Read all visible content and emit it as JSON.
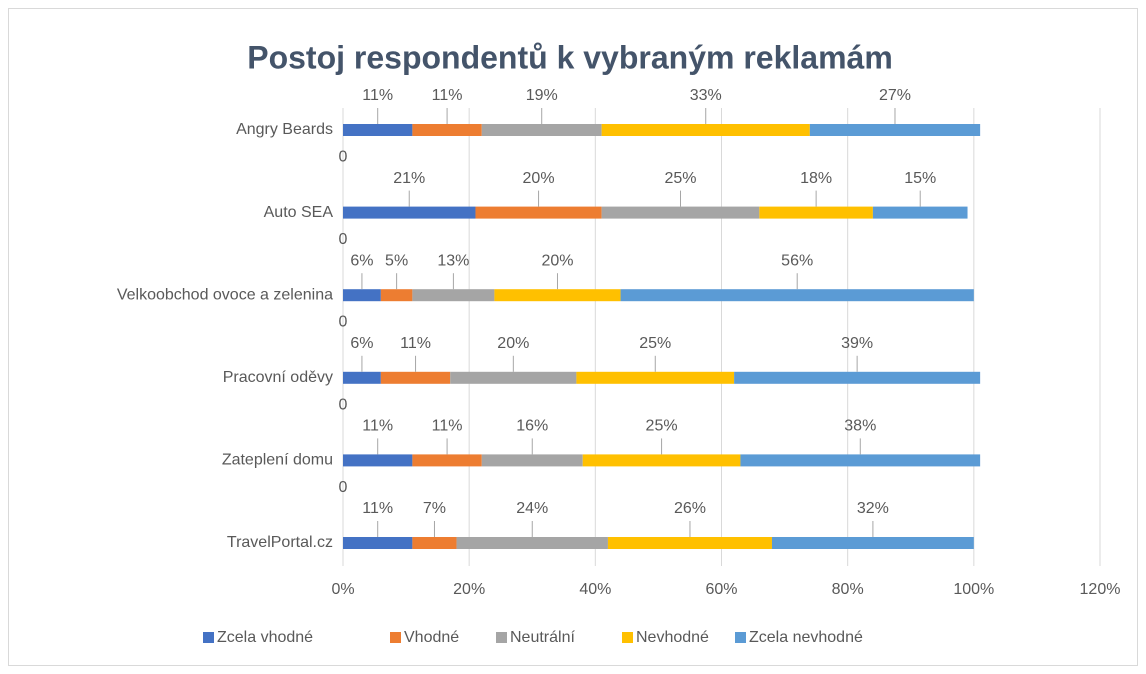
{
  "chart_data": {
    "type": "stacked-bar-horizontal",
    "title": "Postoj respondentů k vybraným reklamám",
    "categories": [
      "Angry Beards",
      null,
      "Auto SEA",
      null,
      "Velkoobchod ovoce a zelenina",
      null,
      "Pracovní oděvy",
      null,
      "Zateplení domu",
      null,
      "TravelPortal.cz"
    ],
    "series": [
      {
        "name": "Zcela vhodné",
        "color": "#4472c4",
        "values": [
          11,
          0,
          21,
          0,
          6,
          0,
          6,
          0,
          11,
          0,
          11
        ],
        "value_labels": [
          "11%",
          "0",
          "21%",
          "0",
          "6%",
          "0",
          "6%",
          "0",
          "11%",
          "0",
          "11%"
        ]
      },
      {
        "name": "Vhodné",
        "color": "#ed7d31",
        "values": [
          11,
          null,
          20,
          null,
          5,
          null,
          11,
          null,
          11,
          null,
          7
        ],
        "value_labels": [
          "11%",
          null,
          "20%",
          null,
          "5%",
          null,
          "11%",
          null,
          "11%",
          null,
          "7%"
        ]
      },
      {
        "name": "Neutrální",
        "color": "#a5a5a5",
        "values": [
          19,
          null,
          25,
          null,
          13,
          null,
          20,
          null,
          16,
          null,
          24
        ],
        "value_labels": [
          "19%",
          null,
          "25%",
          null,
          "13%",
          null,
          "20%",
          null,
          "16%",
          null,
          "24%"
        ]
      },
      {
        "name": "Nevhodné",
        "color": "#ffc000",
        "values": [
          33,
          null,
          18,
          null,
          20,
          null,
          25,
          null,
          25,
          null,
          26
        ],
        "value_labels": [
          "33%",
          null,
          "18%",
          null,
          "20%",
          null,
          "25%",
          null,
          "25%",
          null,
          "26%"
        ]
      },
      {
        "name": "Zcela nevhodné",
        "color": "#5b9bd5",
        "values": [
          27,
          null,
          15,
          null,
          56,
          null,
          39,
          null,
          38,
          null,
          32
        ],
        "value_labels": [
          "27%",
          null,
          "15%",
          null,
          "56%",
          null,
          "39%",
          null,
          "38%",
          null,
          "32%"
        ]
      }
    ],
    "xlim": [
      0,
      120
    ],
    "xticks": [
      {
        "value": 0,
        "label": "0%"
      },
      {
        "value": 20,
        "label": "20%"
      },
      {
        "value": 40,
        "label": "40%"
      },
      {
        "value": 60,
        "label": "60%"
      },
      {
        "value": 80,
        "label": "80%"
      },
      {
        "value": 100,
        "label": "100%"
      },
      {
        "value": 120,
        "label": "120%"
      }
    ],
    "grid": true,
    "legend": "bottom"
  }
}
